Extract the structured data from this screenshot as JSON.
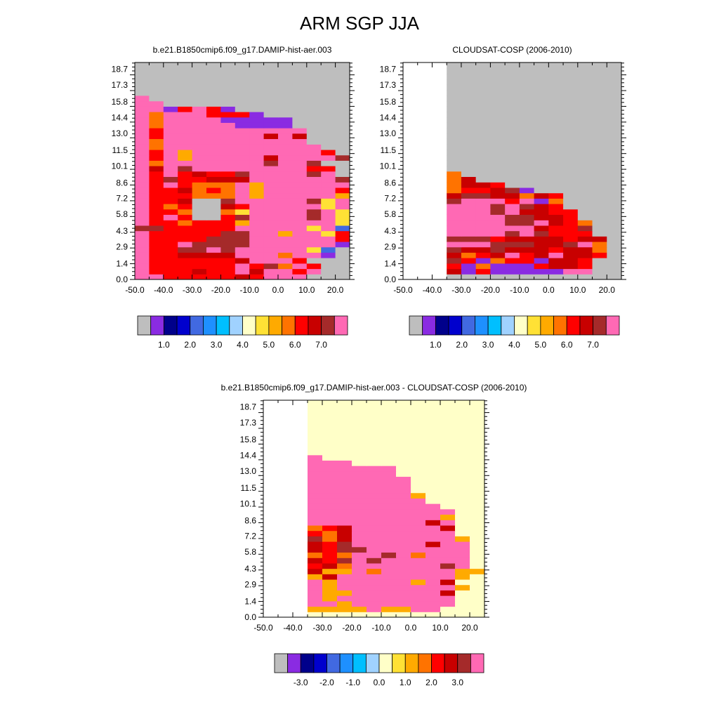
{
  "title": "ARM SGP JJA",
  "x_tick_labels": [
    "-50.0",
    "-40.0",
    "-30.0",
    "-20.0",
    "-10.0",
    "0.0",
    "10.0",
    "20.0"
  ],
  "y_tick_labels": [
    "0.0",
    "1.4",
    "2.9",
    "4.3",
    "5.8",
    "7.2",
    "8.6",
    "10.1",
    "11.5",
    "13.0",
    "14.4",
    "15.8",
    "17.3",
    "18.7"
  ],
  "palette": [
    "#bebebe",
    "#8a2be2",
    "#00008b",
    "#0000cd",
    "#4169e1",
    "#1e90ff",
    "#00bfff",
    "#a0d2ff",
    "#ffffc8",
    "#ffe135",
    "#ffaa00",
    "#ff7300",
    "#ff0000",
    "#c80000",
    "#a52a2a",
    "#ff69b4"
  ],
  "chart_data": [
    {
      "type": "heatmap",
      "title": "b.e21.B1850cmip6.f09_g17.DAMIP-hist-aer.003",
      "xlim": [
        -50,
        25
      ],
      "ylim": [
        0,
        19.3
      ],
      "grid": false,
      "colorbar_labels": [
        "1.0",
        "2.0",
        "3.0",
        "4.0",
        "5.0",
        "6.0",
        "7.0"
      ],
      "x_edges": [
        -50,
        -45,
        -40,
        -35,
        -30,
        -25,
        -20,
        -15,
        -10,
        -5,
        0,
        5,
        10,
        15,
        20,
        25
      ],
      "y_edges": [
        0,
        0.48,
        0.96,
        1.44,
        1.93,
        2.41,
        2.89,
        3.37,
        3.85,
        4.33,
        4.81,
        5.29,
        5.78,
        6.26,
        6.74,
        7.22,
        7.7,
        8.18,
        8.66,
        9.15,
        9.63,
        10.11,
        10.59,
        11.07,
        11.55,
        12.03,
        12.52,
        13.0,
        13.48,
        13.96,
        14.44,
        14.92,
        15.4,
        15.88,
        16.37,
        16.85,
        17.33,
        17.81,
        18.29,
        18.77,
        19.3
      ],
      "rows": [
        "FFCCCCCDCGHG0000",
        "FCCCDCCFDGFCK000",
        "FCCCCCCFCEBLC000",
        "FCCCCCCDFGKC0000",
        "FCCDDDDFFKBJK100",
        "FCCEEFEFKGFH9400",
        "FCCFEEEEFJJFHJ10",
        "FCCCCEEEFMHFKFCC",
        "FCCCCCEEIMAFH9C0",
        "EECCCCCJIMJF9F40",
        "FCCBCCCAJNMFKF90",
        "FCFC00CEJHMFEF91",
        "FCCB00B9JFMFEF91",
        "FCBC00DCJFMFF9G1",
        "FCCD00EJKFMFE9GL",
        "FCCCBBBFAFMFKGAC",
        "FCCDBCBFAMFFFFCC",
        "FCFCBBBGAIMFJFG0",
        "FCECCDDDKMFFLFE0",
        "FCFCDCCEJFFFEF0C",
        "FDFEGGKJJFFFCC00",
        "FBFGFFNHGEFFE000",
        "FCGAJGKJIDFFIGE0",
        "FCGAHHLJMFFFGC00",
        "FBHLLMNNFFFFI000",
        "FBHLLLJFHNLF0000",
        "FCFJKLLFFDFD0000",
        "FCFKLJKLJFFF0000",
        "FBHJJJH1111000000",
        "FBIHHI1111100000",
        "FBIHHCCC1000000",
        "GF1CHC100000000",
        "GG00000000000000",
        "H00000000000000",
        "0000000000000000",
        "0000000000000000",
        "0000000000000000",
        "0000000000000000",
        "0000000000000000",
        "0000000000000000"
      ]
    },
    {
      "type": "heatmap",
      "title": "CLOUDSAT-COSP (2006-2010)",
      "xlim": [
        -50,
        25
      ],
      "ylim": [
        0,
        19.3
      ],
      "grid": false,
      "colorbar_labels": [
        "1.0",
        "2.0",
        "3.0",
        "4.0",
        "5.0",
        "6.0",
        "7.0"
      ],
      "x_edges": [
        -50,
        -45,
        -40,
        -35,
        -30,
        -25,
        -20,
        -15,
        -10,
        -5,
        0,
        5,
        10,
        15,
        20,
        25
      ],
      "y_edges": [
        0,
        0.48,
        0.96,
        1.44,
        1.93,
        2.41,
        2.89,
        3.37,
        3.85,
        4.33,
        4.81,
        5.29,
        5.78,
        6.26,
        6.74,
        7.22,
        7.7,
        8.18,
        8.66,
        9.15,
        9.63,
        10.11,
        10.59,
        11.07,
        11.55,
        12.03,
        12.52,
        13.0,
        13.48,
        13.96,
        14.44,
        14.92,
        15.4,
        15.88,
        16.37,
        16.85,
        17.33,
        17.81,
        18.29,
        18.77,
        19.3
      ],
      "rows": [
        "...000000000000",
        "...D1C11111GF00",
        "...C1B111CDDC00",
        "...EC1BCC1DDC00",
        "...DBCDHCDFDDC0",
        "...EDDEDDDCDDB0",
        "...GHFEEEDDEFB0",
        "...EEECDDDDCDD0",
        "...FFGFEFECCC00",
        "...FGGFFFDCCE00",
        "...FGFGEEFDCB00",
        "...FGFFEEDDC000",
        "...HFGEFDDCC000",
        "...FFGEFEDC0000",
        "...EGHFCF1B0000",
        "...DEEDDBDC0000",
        "...BCCDE1000000",
        "...BDDC00000000",
        "...BD0000000000",
        "...B00000000000",
        "...00000000000",
        "...00000000000",
        "...00000000000",
        "...00000000000",
        "...00000000000",
        "...00000000000",
        "...00000000000",
        "...00000000000",
        "...00000000000",
        "...00000000000",
        "...00000000000",
        "...00000000000",
        "...00000000000",
        "...00000000000",
        "...00000000000",
        "...00000000000",
        "...00000000000",
        "...00000000000",
        "...00000000000",
        "...00000000000"
      ]
    },
    {
      "type": "heatmap",
      "title": "b.e21.B1850cmip6.f09_g17.DAMIP-hist-aer.003 - CLOUDSAT-COSP (2006-2010)",
      "xlim": [
        -50,
        25
      ],
      "ylim": [
        0,
        19.3
      ],
      "grid": false,
      "colorbar_labels": [
        "-3.0",
        "-2.0",
        "-1.0",
        "0.0",
        "1.0",
        "2.0",
        "3.0"
      ],
      "x_edges": [
        -50,
        -45,
        -40,
        -35,
        -30,
        -25,
        -20,
        -15,
        -10,
        -5,
        0,
        5,
        10,
        15,
        20,
        25
      ],
      "y_edges": [
        0,
        0.48,
        0.96,
        1.44,
        1.93,
        2.41,
        2.89,
        3.37,
        3.85,
        4.33,
        4.81,
        5.29,
        5.78,
        6.26,
        6.74,
        7.22,
        7.7,
        8.18,
        8.66,
        9.15,
        9.63,
        10.11,
        10.59,
        11.07,
        11.55,
        12.03,
        12.52,
        13.0,
        13.48,
        13.96,
        14.44,
        14.92,
        15.4,
        15.88,
        16.37,
        16.85,
        17.33,
        17.81,
        18.29,
        18.77,
        19.3
      ],
      "rows": [
        "...888888888888",
        "...AAAAKAAHH888",
        "...KKAIJFFFHF88",
        "...KAIIHLHFHM88",
        "...JAAMMNMFFD88",
        "...IAIJJLFFFJA8",
        "...GAJIKMIAJD88",
        "...ADMJKHJHJFA8",
        "...DAAJBJMJIFAA",
        "...CDBLGKKLFEJ8",
        "...DCELEFHLFFJ8",
        "...BCBLNEFBFFI8",
        "...DCEEFFFLJIJ8",
        "...DCEKFFFFDGJ8",
        "...EBDMFFFHLHA8",
        "...CBDKFFFFNM88",
        "...BCDMFFFFFD88",
        "...GHHMFFFFDL88",
        "...LKLNFFFFFA88",
        "...HJLFFFFFMJ88",
        "...NMNFFFFNN888",
        "...FFFFFFFN8888",
        "...FFFFFFFA8888",
        "...FFFFFFG88888",
        "...FFFFFFG88888",
        "...FFFFNMH88888",
        "...FFFFFF888888",
        "...JLNMHH888888",
        "...NMH8888888888",
        "...I88888888888",
        "...888888888888",
        "...888888888888",
        "...888888888888",
        "...888888888888",
        "...888888888888",
        "...888888888888",
        "...888888888888",
        "...888888888888",
        "...888888888888",
        "...888888888888"
      ]
    }
  ]
}
